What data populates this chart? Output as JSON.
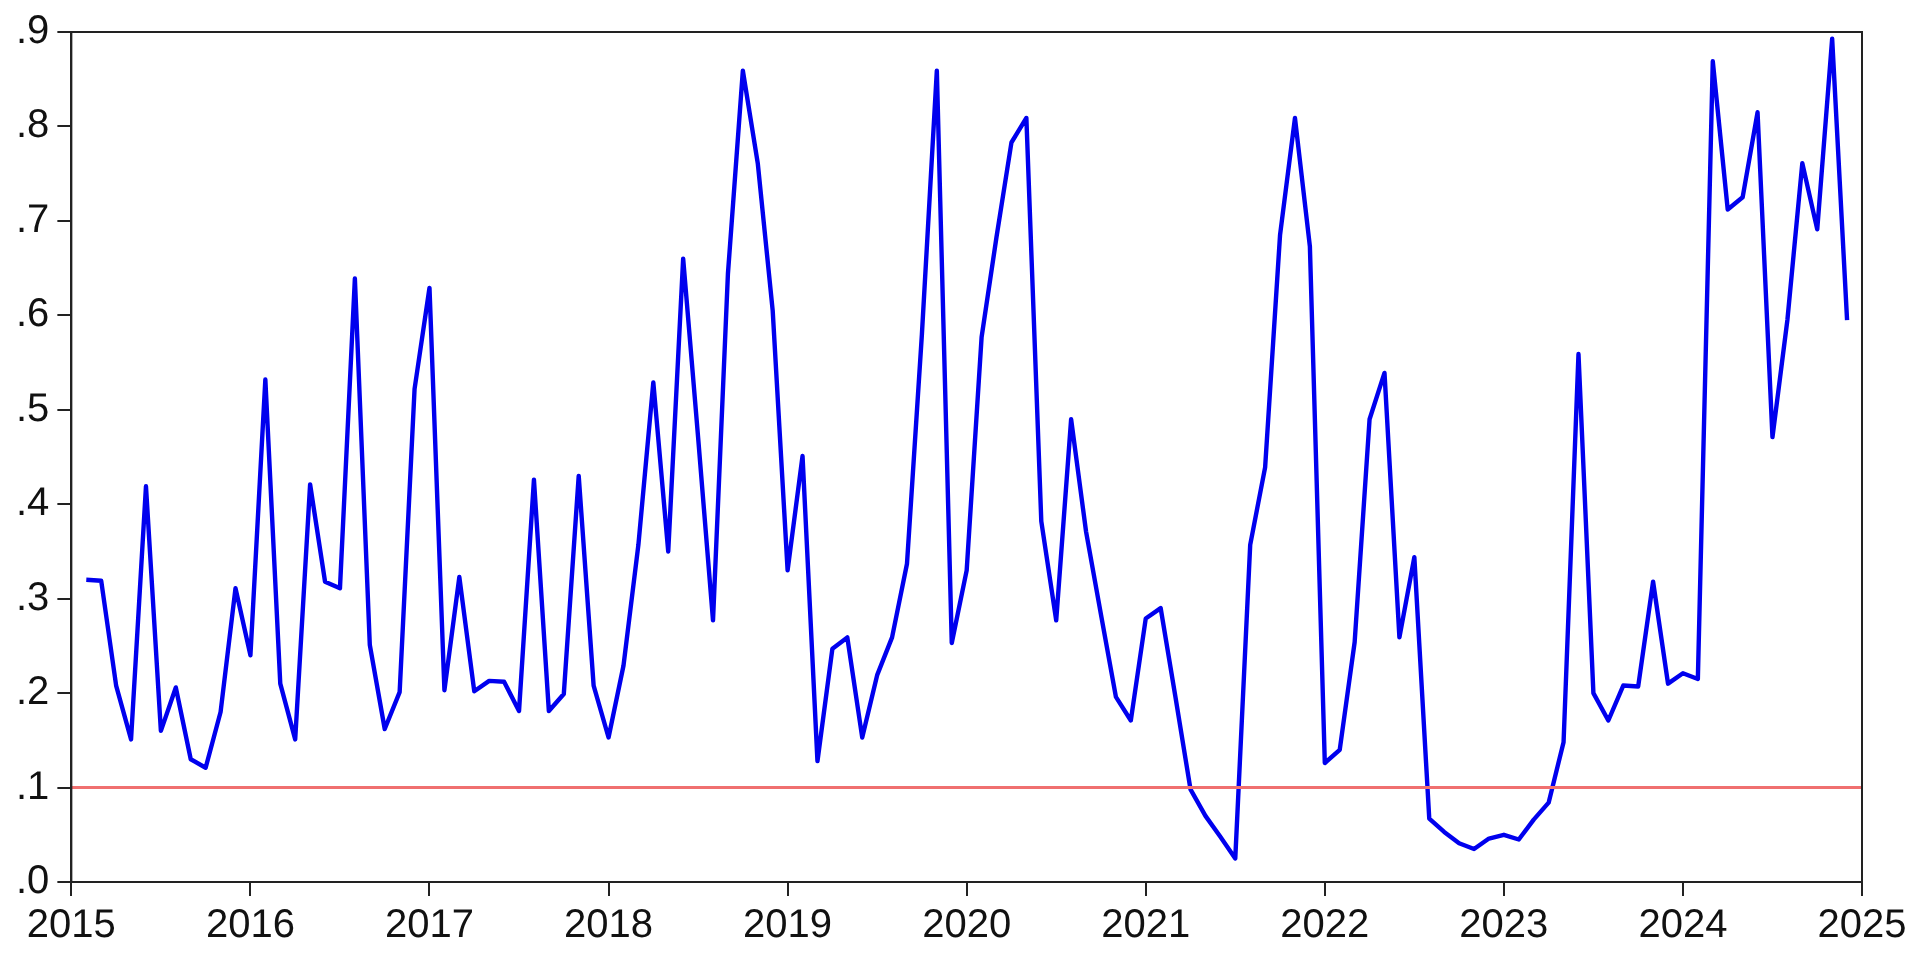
{
  "chart_data": {
    "type": "line",
    "x": [
      "2015-02",
      "2015-03",
      "2015-04",
      "2015-05",
      "2015-06",
      "2015-07",
      "2015-08",
      "2015-09",
      "2015-10",
      "2015-11",
      "2015-12",
      "2016-01",
      "2016-02",
      "2016-03",
      "2016-04",
      "2016-05",
      "2016-06",
      "2016-07",
      "2016-08",
      "2016-09",
      "2016-10",
      "2016-11",
      "2016-12",
      "2017-01",
      "2017-02",
      "2017-03",
      "2017-04",
      "2017-05",
      "2017-06",
      "2017-07",
      "2017-08",
      "2017-09",
      "2017-10",
      "2017-11",
      "2017-12",
      "2018-01",
      "2018-02",
      "2018-03",
      "2018-04",
      "2018-05",
      "2018-06",
      "2018-07",
      "2018-08",
      "2018-09",
      "2018-10",
      "2018-11",
      "2018-12",
      "2019-01",
      "2019-02",
      "2019-03",
      "2019-04",
      "2019-05",
      "2019-06",
      "2019-07",
      "2019-08",
      "2019-09",
      "2019-10",
      "2019-11",
      "2019-12",
      "2020-01",
      "2020-02",
      "2020-03",
      "2020-04",
      "2020-05",
      "2020-06",
      "2020-07",
      "2020-08",
      "2020-09",
      "2020-10",
      "2020-11",
      "2020-12",
      "2021-01",
      "2021-02",
      "2021-03",
      "2021-04",
      "2021-05",
      "2021-06",
      "2021-07",
      "2021-08",
      "2021-09",
      "2021-10",
      "2021-11",
      "2021-12",
      "2022-01",
      "2022-02",
      "2022-03",
      "2022-04",
      "2022-05",
      "2022-06",
      "2022-07",
      "2022-08",
      "2022-09",
      "2022-10",
      "2022-11",
      "2022-12",
      "2023-01",
      "2023-02",
      "2023-03",
      "2023-04",
      "2023-05",
      "2023-06",
      "2023-07",
      "2023-08",
      "2023-09",
      "2023-10",
      "2023-11",
      "2023-12",
      "2024-01",
      "2024-02",
      "2024-03",
      "2024-04",
      "2024-05",
      "2024-06",
      "2024-07",
      "2024-08",
      "2024-09",
      "2024-10",
      "2024-11",
      "2024-12"
    ],
    "series": [
      {
        "color": "#0000ee",
        "values": [
          0.32,
          0.319,
          0.208,
          0.151,
          0.419,
          0.16,
          0.206,
          0.13,
          0.121,
          0.18,
          0.311,
          0.24,
          0.532,
          0.21,
          0.151,
          0.421,
          0.318,
          0.311,
          0.639,
          0.251,
          0.162,
          0.201,
          0.522,
          0.629,
          0.203,
          0.323,
          0.202,
          0.213,
          0.212,
          0.181,
          0.426,
          0.181,
          0.199,
          0.43,
          0.208,
          0.153,
          0.229,
          0.357,
          0.529,
          0.35,
          0.66,
          0.471,
          0.277,
          0.644,
          0.859,
          0.761,
          0.605,
          0.33,
          0.451,
          0.128,
          0.247,
          0.259,
          0.153,
          0.219,
          0.259,
          0.337,
          0.58,
          0.859,
          0.253,
          0.33,
          0.577,
          0.683,
          0.783,
          0.809,
          0.382,
          0.277,
          0.49,
          0.371,
          0.283,
          0.196,
          0.171,
          0.279,
          0.29,
          0.195,
          0.098,
          0.07,
          0.048,
          0.025,
          0.357,
          0.439,
          0.685,
          0.809,
          0.673,
          0.126,
          0.14,
          0.254,
          0.49,
          0.539,
          0.259,
          0.344,
          0.067,
          0.053,
          0.041,
          0.035,
          0.046,
          0.05,
          0.045,
          0.066,
          0.084,
          0.148,
          0.559,
          0.2,
          0.171,
          0.208,
          0.207,
          0.318,
          0.21,
          0.221,
          0.215,
          0.869,
          0.712,
          0.725,
          0.815,
          0.471,
          0.595,
          0.761,
          0.691,
          0.893,
          0.595
        ]
      }
    ],
    "xlim": [
      "2015-01-01",
      "2025-01-01"
    ],
    "xticks": [
      {
        "value": "2015-01",
        "label": "2015"
      },
      {
        "value": "2016-01",
        "label": "2016"
      },
      {
        "value": "2017-01",
        "label": "2017"
      },
      {
        "value": "2018-01",
        "label": "2018"
      },
      {
        "value": "2019-01",
        "label": "2019"
      },
      {
        "value": "2020-01",
        "label": "2020"
      },
      {
        "value": "2021-01",
        "label": "2021"
      },
      {
        "value": "2022-01",
        "label": "2022"
      },
      {
        "value": "2023-01",
        "label": "2023"
      },
      {
        "value": "2024-01",
        "label": "2024"
      },
      {
        "value": "2025-01",
        "label": "2025"
      }
    ],
    "ylim": [
      0,
      0.9
    ],
    "yticks": [
      {
        "value": 0,
        "label": ".0"
      },
      {
        "value": 0.1,
        "label": ".1"
      },
      {
        "value": 0.2,
        "label": ".2"
      },
      {
        "value": 0.3,
        "label": ".3"
      },
      {
        "value": 0.4,
        "label": ".4"
      },
      {
        "value": 0.5,
        "label": ".5"
      },
      {
        "value": 0.6,
        "label": ".6"
      },
      {
        "value": 0.7,
        "label": ".7"
      },
      {
        "value": 0.8,
        "label": ".8"
      },
      {
        "value": 0.9,
        "label": ".9"
      }
    ],
    "ref_lines": [
      {
        "axis": "y",
        "value": 0.1,
        "color": "#f07070"
      }
    ],
    "grid": false,
    "legend": false,
    "marker": "none",
    "line_style": "solid"
  }
}
